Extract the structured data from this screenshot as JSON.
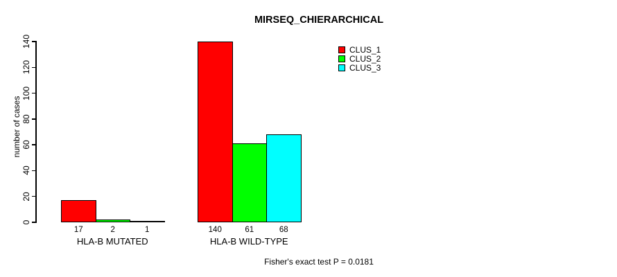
{
  "chart_data": {
    "type": "bar",
    "title": "MIRSEQ_CHIERARCHICAL",
    "ylabel": "number of cases",
    "xlabel": "",
    "categories": [
      "HLA-B MUTATED",
      "HLA-B WILD-TYPE"
    ],
    "series": [
      {
        "name": "CLUS_1",
        "color": "#ff0000",
        "values": [
          17,
          140
        ]
      },
      {
        "name": "CLUS_2",
        "color": "#00ff00",
        "values": [
          2,
          61
        ]
      },
      {
        "name": "CLUS_3",
        "color": "#00ffff",
        "values": [
          1,
          68
        ]
      }
    ],
    "bar_value_labels": [
      [
        17,
        2,
        1
      ],
      [
        140,
        61,
        68
      ]
    ],
    "yticks": [
      0,
      20,
      40,
      60,
      80,
      100,
      120,
      140
    ],
    "ylim": [
      0,
      140
    ],
    "grid": false,
    "legend_position": "top-right",
    "annotation": "Fisher's exact test P = 0.0181",
    "background_color": "#ffffff",
    "axis_color": "#000000"
  }
}
